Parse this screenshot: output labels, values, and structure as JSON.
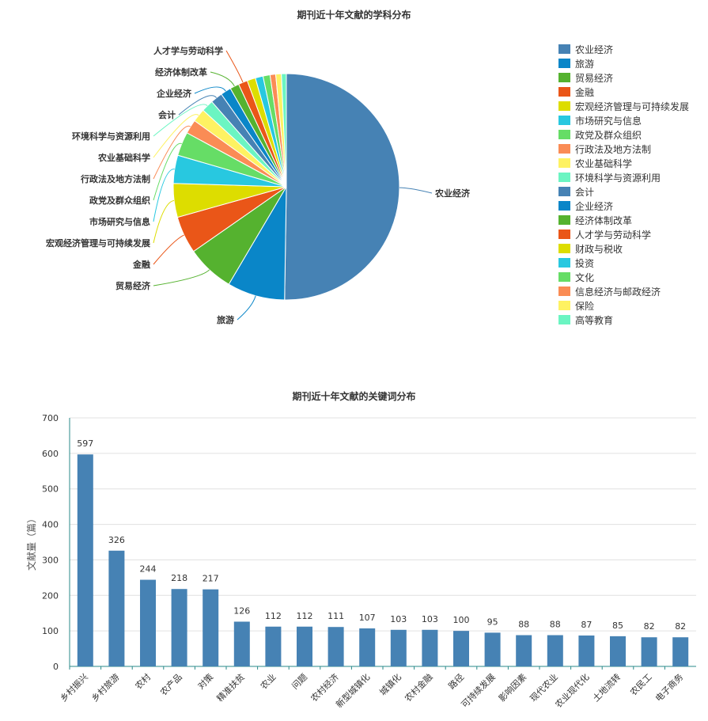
{
  "charts": {
    "pie_title": "期刊近十年文献的学科分布",
    "bar_title": "期刊近十年文献的关键词分布",
    "bar_ylabel": "文献量（篇）"
  },
  "legend": [
    {
      "label": "农业经济",
      "color": "#4682b4"
    },
    {
      "label": "旅游",
      "color": "#0a86c8"
    },
    {
      "label": "贸易经济",
      "color": "#55b22f"
    },
    {
      "label": "金融",
      "color": "#ea5618"
    },
    {
      "label": "宏观经济管理与可持续发展",
      "color": "#dddd00"
    },
    {
      "label": "市场研究与信息",
      "color": "#28c8e0"
    },
    {
      "label": "政党及群众组织",
      "color": "#66dd66"
    },
    {
      "label": "行政法及地方法制",
      "color": "#fa8c55"
    },
    {
      "label": "农业基础科学",
      "color": "#fef262"
    },
    {
      "label": "环境科学与资源利用",
      "color": "#6bf5c2"
    },
    {
      "label": "会计",
      "color": "#4682b4"
    },
    {
      "label": "企业经济",
      "color": "#0a86c8"
    },
    {
      "label": "经济体制改革",
      "color": "#55b22f"
    },
    {
      "label": "人才学与劳动科学",
      "color": "#ea5618"
    },
    {
      "label": "财政与税收",
      "color": "#dddd00"
    },
    {
      "label": "投资",
      "color": "#28c8e0"
    },
    {
      "label": "文化",
      "color": "#66dd66"
    },
    {
      "label": "信息经济与邮政经济",
      "color": "#fa8c55"
    },
    {
      "label": "保险",
      "color": "#fef262"
    },
    {
      "label": "高等教育",
      "color": "#6bf5c2"
    }
  ],
  "chart_data": [
    {
      "type": "pie",
      "title": "期刊近十年文献的学科分布",
      "slices": [
        {
          "label": "农业经济",
          "value": 500,
          "color": "#4682b4",
          "labeled": true
        },
        {
          "label": "旅游",
          "value": 82,
          "color": "#0a86c8",
          "labeled": true
        },
        {
          "label": "贸易经济",
          "value": 68,
          "color": "#55b22f",
          "labeled": true
        },
        {
          "label": "金融",
          "value": 53,
          "color": "#ea5618",
          "labeled": true
        },
        {
          "label": "宏观经济管理与可持续发展",
          "value": 48,
          "color": "#dddd00",
          "labeled": true
        },
        {
          "label": "市场研究与信息",
          "value": 40,
          "color": "#28c8e0",
          "labeled": true
        },
        {
          "label": "政党及群众组织",
          "value": 34,
          "color": "#66dd66",
          "labeled": true
        },
        {
          "label": "行政法及地方法制",
          "value": 20,
          "color": "#fa8c55",
          "labeled": true
        },
        {
          "label": "农业基础科学",
          "value": 19,
          "color": "#fef262",
          "labeled": true
        },
        {
          "label": "环境科学与资源利用",
          "value": 17,
          "color": "#6bf5c2",
          "labeled": true
        },
        {
          "label": "会计",
          "value": 17,
          "color": "#4682b4",
          "labeled": true
        },
        {
          "label": "企业经济",
          "value": 15,
          "color": "#0a86c8",
          "labeled": true
        },
        {
          "label": "经济体制改革",
          "value": 13,
          "color": "#55b22f",
          "labeled": true
        },
        {
          "label": "人才学与劳动科学",
          "value": 13,
          "color": "#ea5618",
          "labeled": true
        },
        {
          "label": "财政与税收",
          "value": 12,
          "color": "#dddd00",
          "labeled": false
        },
        {
          "label": "投资",
          "value": 11,
          "color": "#28c8e0",
          "labeled": false
        },
        {
          "label": "文化",
          "value": 10,
          "color": "#66dd66",
          "labeled": false
        },
        {
          "label": "信息经济与邮政经济",
          "value": 8,
          "color": "#fa8c55",
          "labeled": false
        },
        {
          "label": "保险",
          "value": 8,
          "color": "#fef262",
          "labeled": false
        },
        {
          "label": "高等教育",
          "value": 7,
          "color": "#6bf5c2",
          "labeled": false
        }
      ],
      "legend_position": "right"
    },
    {
      "type": "bar",
      "title": "期刊近十年文献的关键词分布",
      "ylabel": "文献量（篇）",
      "xlabel": "",
      "ylim": [
        0,
        700
      ],
      "yticks": [
        0,
        100,
        200,
        300,
        400,
        500,
        600,
        700
      ],
      "grid": true,
      "bar_color": "#4682b4",
      "categories": [
        "乡村振兴",
        "乡村旅游",
        "农村",
        "农产品",
        "对策",
        "精准扶贫",
        "农业",
        "问题",
        "农村经济",
        "新型城镇化",
        "城镇化",
        "农村金融",
        "路径",
        "可持续发展",
        "影响因素",
        "现代农业",
        "农业现代化",
        "土地流转",
        "农民工",
        "电子商务"
      ],
      "values": [
        597,
        326,
        244,
        218,
        217,
        126,
        112,
        112,
        111,
        107,
        103,
        103,
        100,
        95,
        88,
        88,
        87,
        85,
        82,
        82
      ]
    }
  ]
}
